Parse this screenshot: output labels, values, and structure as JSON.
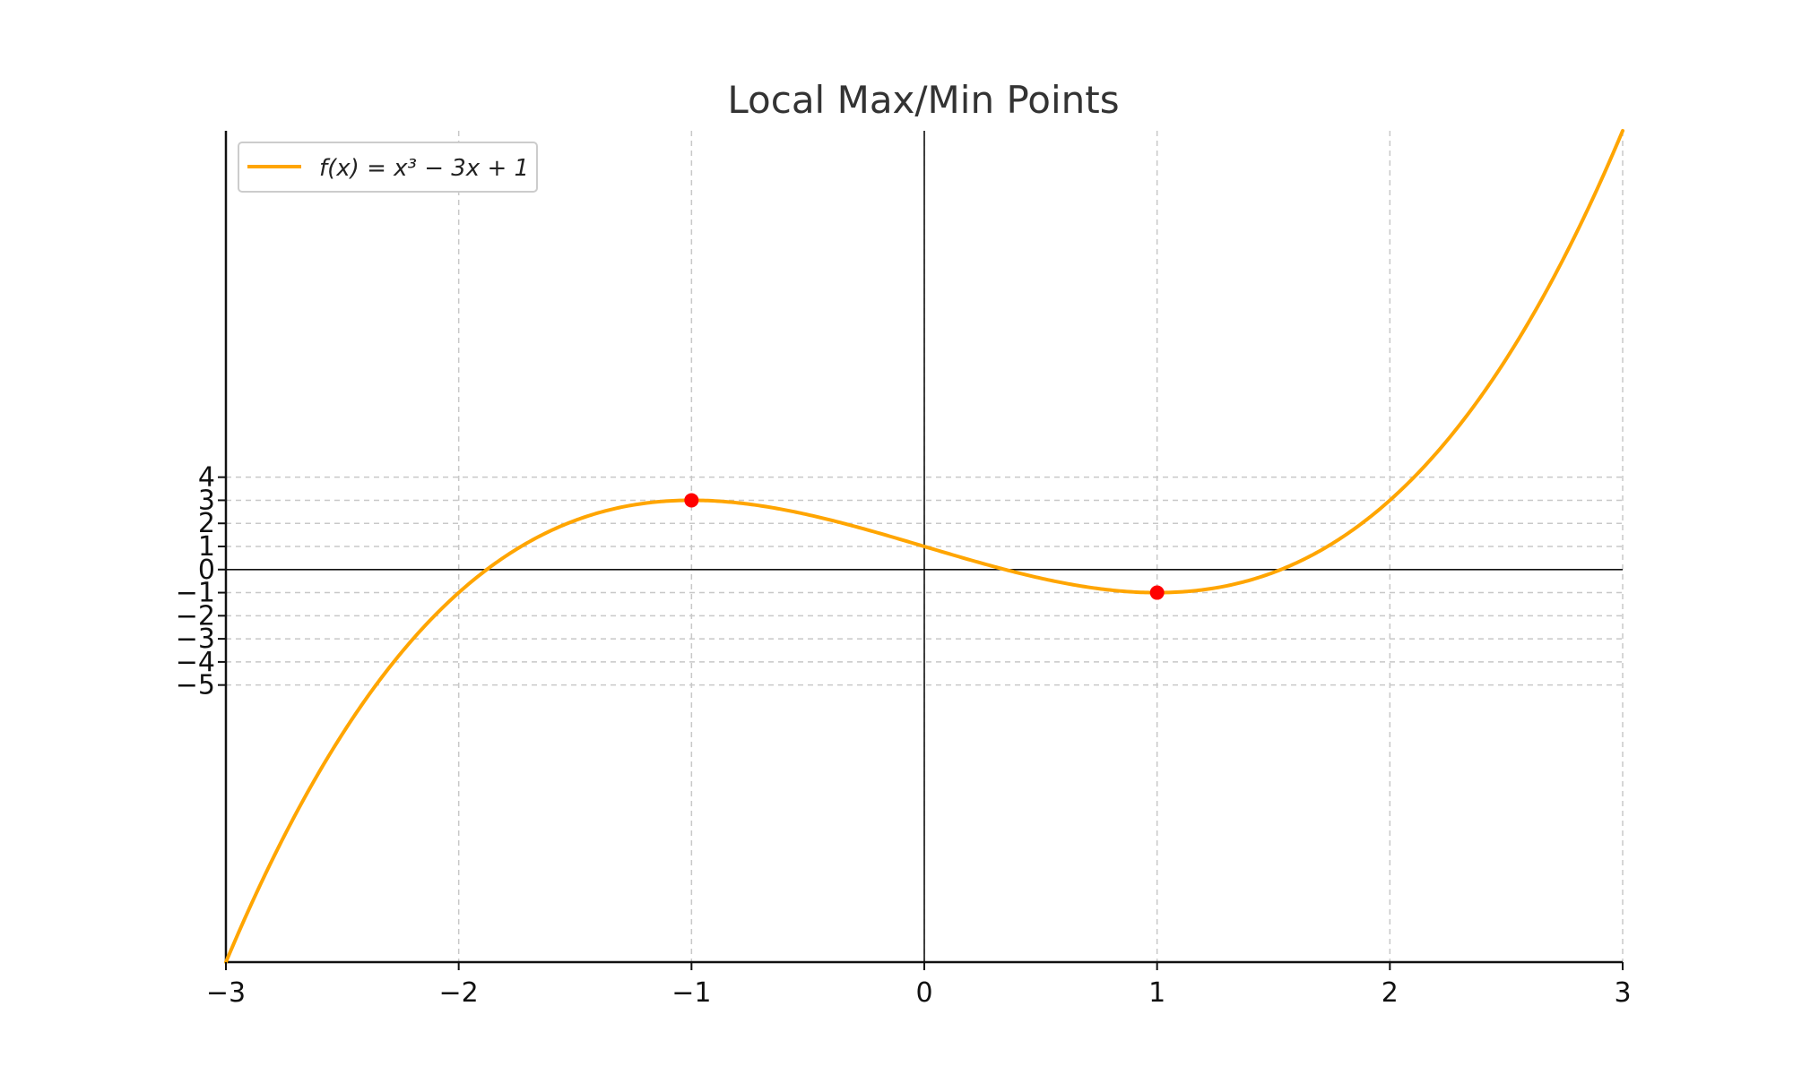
{
  "chart_data": {
    "type": "line",
    "title": "Local Max/Min Points",
    "xlabel": "",
    "ylabel": "",
    "xlim": [
      -3,
      3
    ],
    "ylim": [
      -17,
      19
    ],
    "x_ticks": [
      -3,
      -2,
      -1,
      0,
      1,
      2,
      3
    ],
    "x_tick_labels": [
      "−3",
      "−2",
      "−1",
      "0",
      "1",
      "2",
      "3"
    ],
    "y_ticks": [
      4,
      3,
      2,
      1,
      0,
      -1,
      -2,
      -3,
      -4,
      -5
    ],
    "y_tick_labels": [
      "4",
      "3",
      "2",
      "1",
      "0",
      "−1",
      "−2",
      "−3",
      "−4",
      "−5"
    ],
    "grid": true,
    "legend_position": "top-left",
    "series": [
      {
        "name": "f(x) = x³ − 3x + 1",
        "expression": "x^3 - 3x + 1",
        "color": "#FFA500"
      }
    ],
    "points": [
      {
        "x": -1,
        "y": 3,
        "color": "#FF0000"
      },
      {
        "x": 1,
        "y": -1,
        "color": "#FF0000"
      }
    ],
    "axis_lines": {
      "x0": true,
      "y0": true
    }
  }
}
